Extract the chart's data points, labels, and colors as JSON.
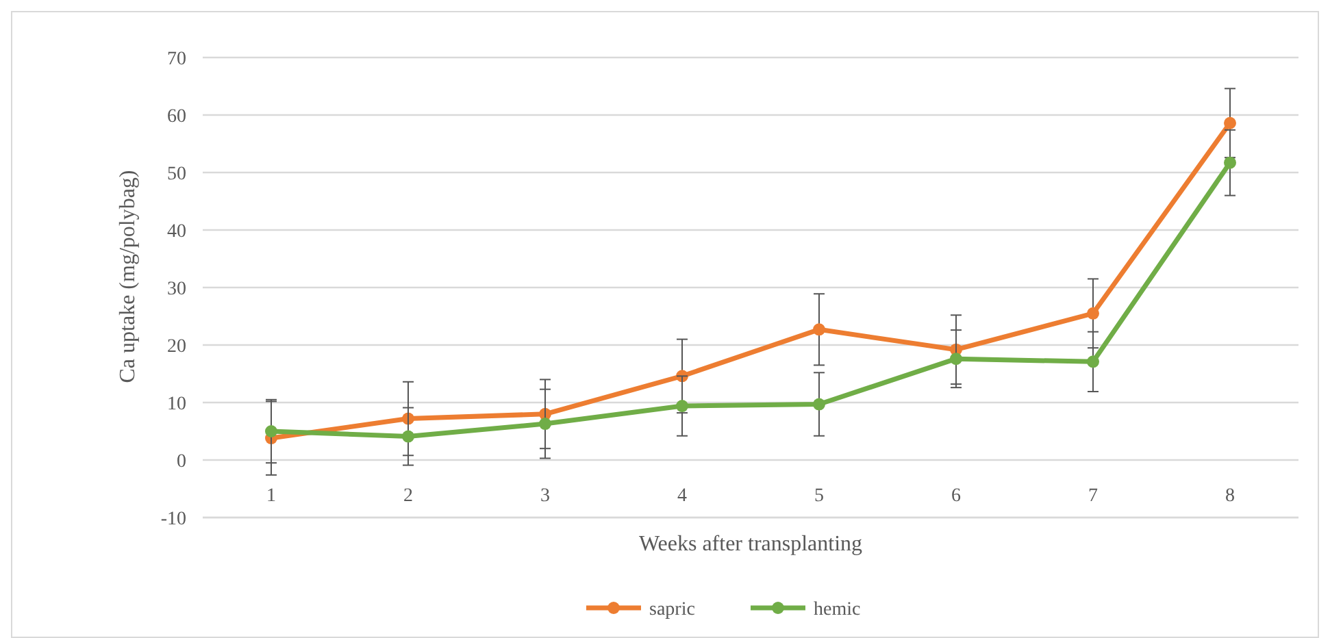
{
  "chart_data": {
    "type": "line",
    "xlabel": "Weeks after transplanting",
    "ylabel": "Ca uptake (mg/polybag)",
    "categories": [
      "1",
      "2",
      "3",
      "4",
      "5",
      "6",
      "7",
      "8"
    ],
    "series": [
      {
        "name": "sapric",
        "color": "#ed7d31",
        "values": [
          3.8,
          7.2,
          8,
          14.6,
          22.7,
          19.2,
          25.5,
          58.6
        ],
        "errors": [
          6.4,
          6.4,
          6,
          6.4,
          6.2,
          6,
          6,
          6
        ]
      },
      {
        "name": "hemic",
        "color": "#70ad47",
        "values": [
          5,
          4.1,
          6.3,
          9.4,
          9.7,
          17.6,
          17.1,
          51.7
        ],
        "errors": [
          5.5,
          5,
          6,
          5.2,
          5.5,
          5,
          5.2,
          5.7
        ]
      }
    ],
    "ylim": [
      -10,
      70
    ],
    "yticks": [
      -10,
      0,
      10,
      20,
      30,
      40,
      50,
      60,
      70
    ],
    "grid": "y",
    "legend": "bottom",
    "marker": "circle",
    "line_style": "solid"
  }
}
